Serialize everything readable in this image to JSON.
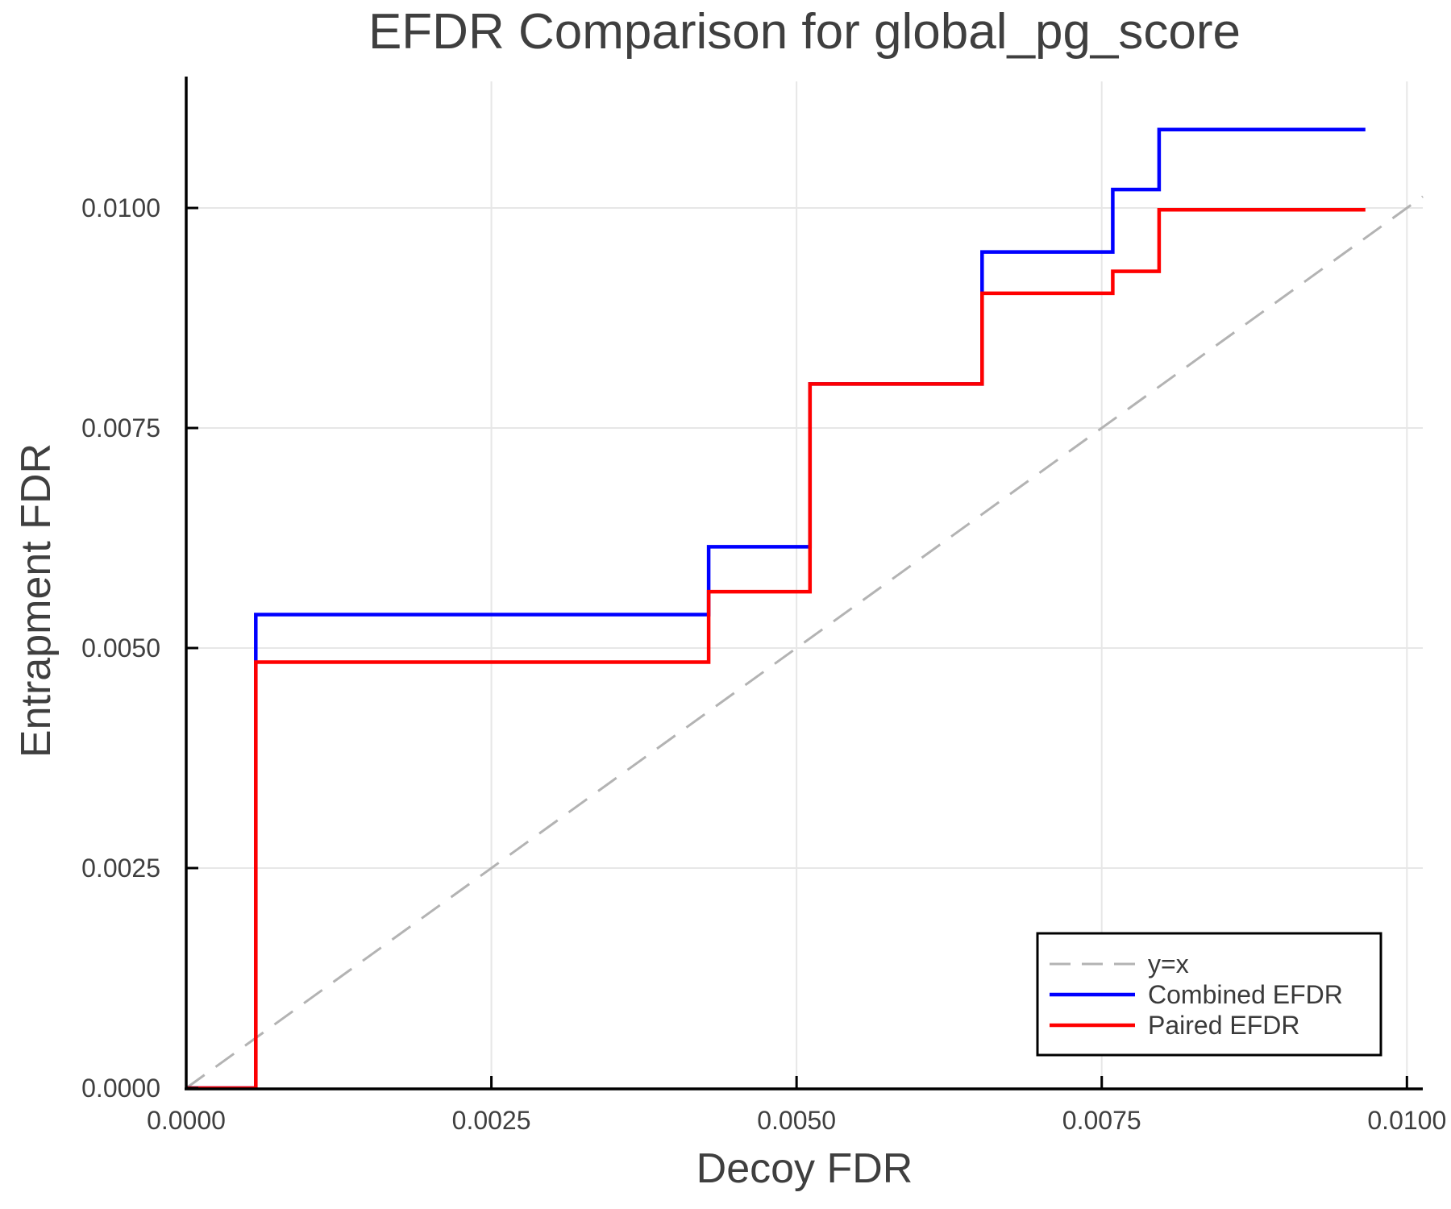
{
  "figure": {
    "background": "#ffffff",
    "text_color": "#3f3f3f",
    "spine_color": "#000000"
  },
  "chart_data": {
    "type": "line",
    "subtype": "step",
    "title": "EFDR Comparison for global_pg_score",
    "xlabel": "Decoy FDR",
    "ylabel": "Entrapment FDR",
    "xlim": [
      0,
      0.01013
    ],
    "ylim": [
      0,
      0.011438
    ],
    "grid": true,
    "grid_color": "#e7e7e7",
    "x_ticks": [
      {
        "v": 0.0,
        "label": "0.0000"
      },
      {
        "v": 0.0025,
        "label": "0.0025"
      },
      {
        "v": 0.005,
        "label": "0.0050"
      },
      {
        "v": 0.0075,
        "label": "0.0075"
      },
      {
        "v": 0.01,
        "label": "0.0100"
      }
    ],
    "y_ticks": [
      {
        "v": 0.0,
        "label": "0.0000"
      },
      {
        "v": 0.0025,
        "label": "0.0025"
      },
      {
        "v": 0.005,
        "label": "0.0050"
      },
      {
        "v": 0.0075,
        "label": "0.0075"
      },
      {
        "v": 0.01,
        "label": "0.0100"
      }
    ],
    "legend": {
      "position": "lower right",
      "entries": [
        "y=x",
        "Combined EFDR",
        "Paired EFDR"
      ]
    },
    "series": [
      {
        "name": "y=x",
        "color": "#b3b3b3",
        "dashed": true,
        "width": 3,
        "points": [
          [
            0,
            0
          ],
          [
            0.01013,
            0.01013
          ]
        ]
      },
      {
        "name": "Combined EFDR",
        "color": "#0000ff",
        "dashed": false,
        "width": 4.5,
        "points": [
          [
            0.0,
            0.0
          ],
          [
            0.00057,
            0.0
          ],
          [
            0.00057,
            0.00538
          ],
          [
            0.00428,
            0.00538
          ],
          [
            0.00428,
            0.00615
          ],
          [
            0.00511,
            0.00615
          ],
          [
            0.00511,
            0.008
          ],
          [
            0.00652,
            0.008
          ],
          [
            0.00652,
            0.0095
          ],
          [
            0.00759,
            0.0095
          ],
          [
            0.00759,
            0.01021
          ],
          [
            0.00797,
            0.01021
          ],
          [
            0.00797,
            0.01089
          ],
          [
            0.00966,
            0.01089
          ]
        ]
      },
      {
        "name": "Paired EFDR",
        "color": "#ff0000",
        "dashed": false,
        "width": 4.5,
        "points": [
          [
            0.0,
            0.0
          ],
          [
            0.00057,
            0.0
          ],
          [
            0.00057,
            0.00484
          ],
          [
            0.00428,
            0.00484
          ],
          [
            0.00428,
            0.00564
          ],
          [
            0.00511,
            0.00564
          ],
          [
            0.00511,
            0.008
          ],
          [
            0.00652,
            0.008
          ],
          [
            0.00652,
            0.00903
          ],
          [
            0.00759,
            0.00903
          ],
          [
            0.00759,
            0.00928
          ],
          [
            0.00797,
            0.00928
          ],
          [
            0.00797,
            0.00998
          ],
          [
            0.00966,
            0.00998
          ]
        ]
      }
    ]
  }
}
